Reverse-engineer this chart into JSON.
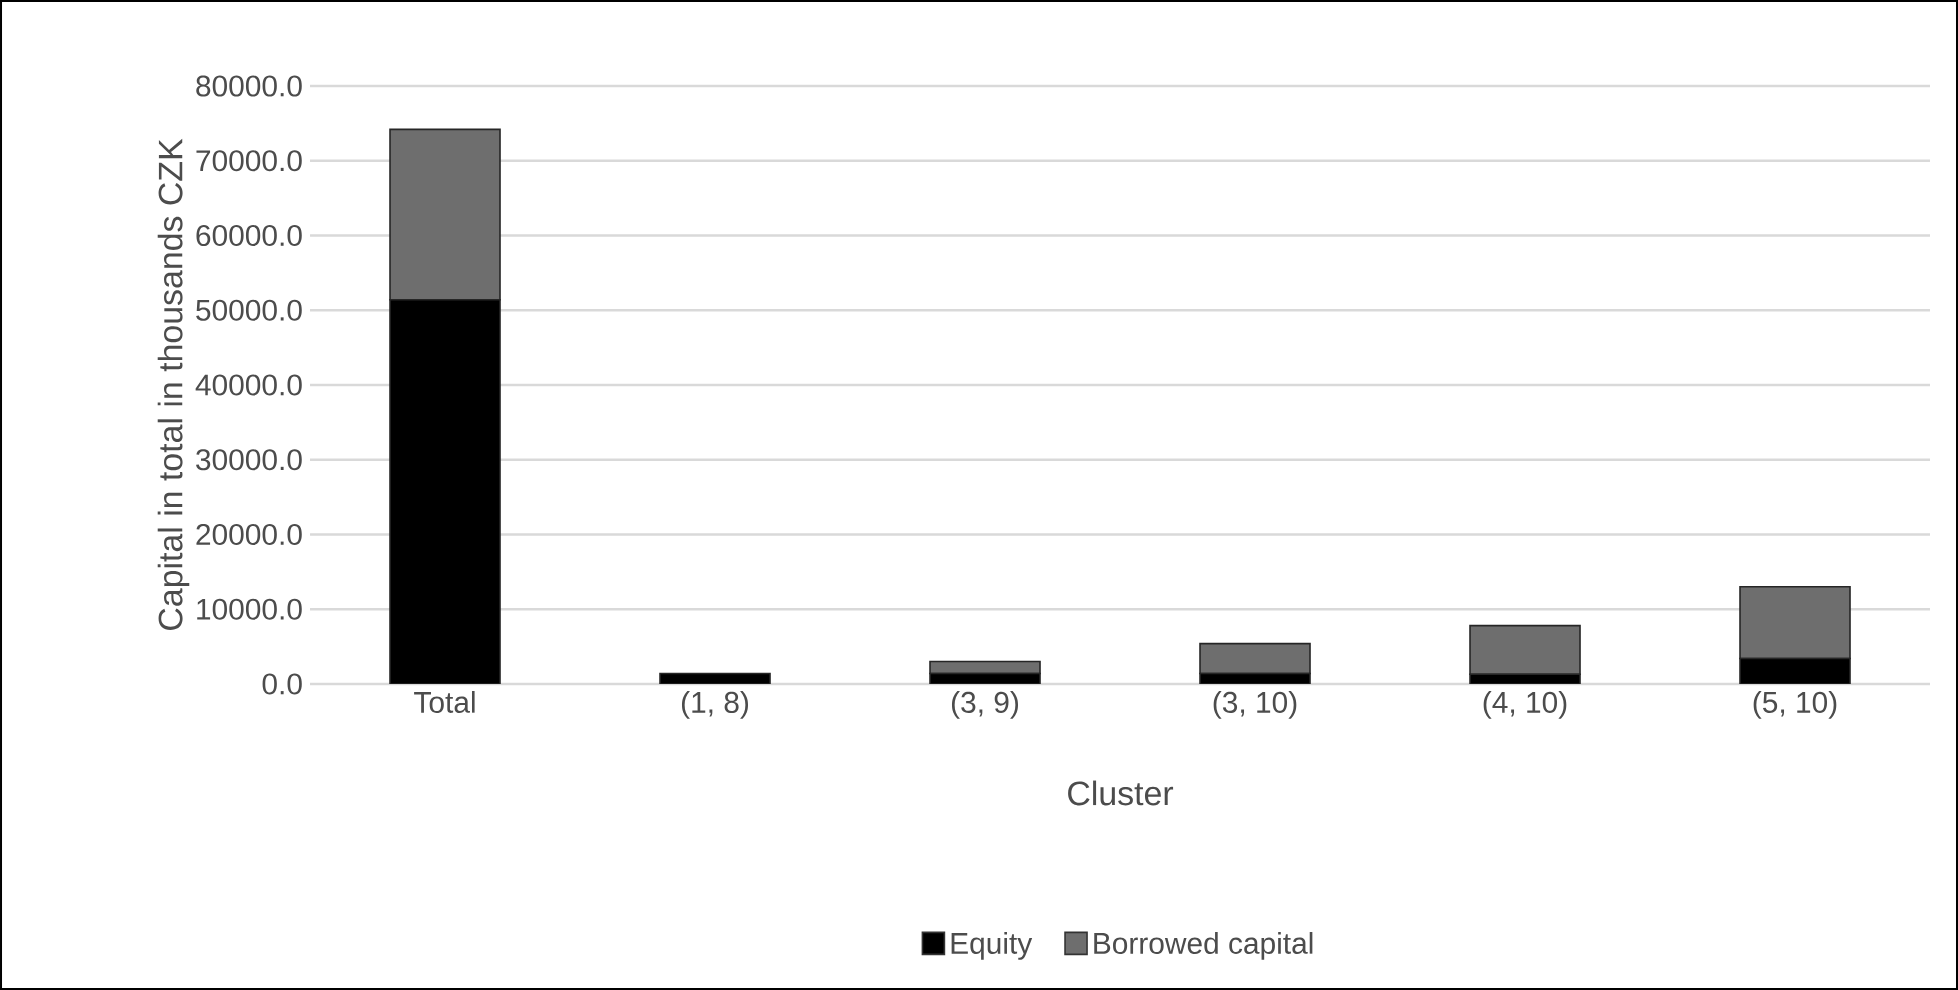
{
  "chart_data": {
    "type": "bar",
    "stacked": true,
    "xlabel": "Cluster",
    "ylabel": "Capital in total in thousands CZK",
    "categories": [
      "Total",
      "(1, 8)",
      "(3, 9)",
      "(3, 10)",
      "(4, 10)",
      "(5, 10)"
    ],
    "series": [
      {
        "name": "Equity",
        "color": "#000000",
        "values": [
          51400,
          1400,
          1400,
          1400,
          1300,
          3400
        ]
      },
      {
        "name": "Borrowed capital",
        "color": "#6e6e6e",
        "values": [
          22800,
          0,
          1600,
          4000,
          6500,
          9600
        ]
      }
    ],
    "ylim": [
      0,
      80000
    ],
    "yticks": [
      {
        "value": 0,
        "label": "0.0"
      },
      {
        "value": 10000,
        "label": "10000.0"
      },
      {
        "value": 20000,
        "label": "20000.0"
      },
      {
        "value": 30000,
        "label": "30000.0"
      },
      {
        "value": 40000,
        "label": "40000.0"
      },
      {
        "value": 50000,
        "label": "50000.0"
      },
      {
        "value": 60000,
        "label": "60000.0"
      },
      {
        "value": 70000,
        "label": "70000.0"
      },
      {
        "value": 80000,
        "label": "80000.0"
      }
    ],
    "grid": "y",
    "legend": "bottom"
  }
}
